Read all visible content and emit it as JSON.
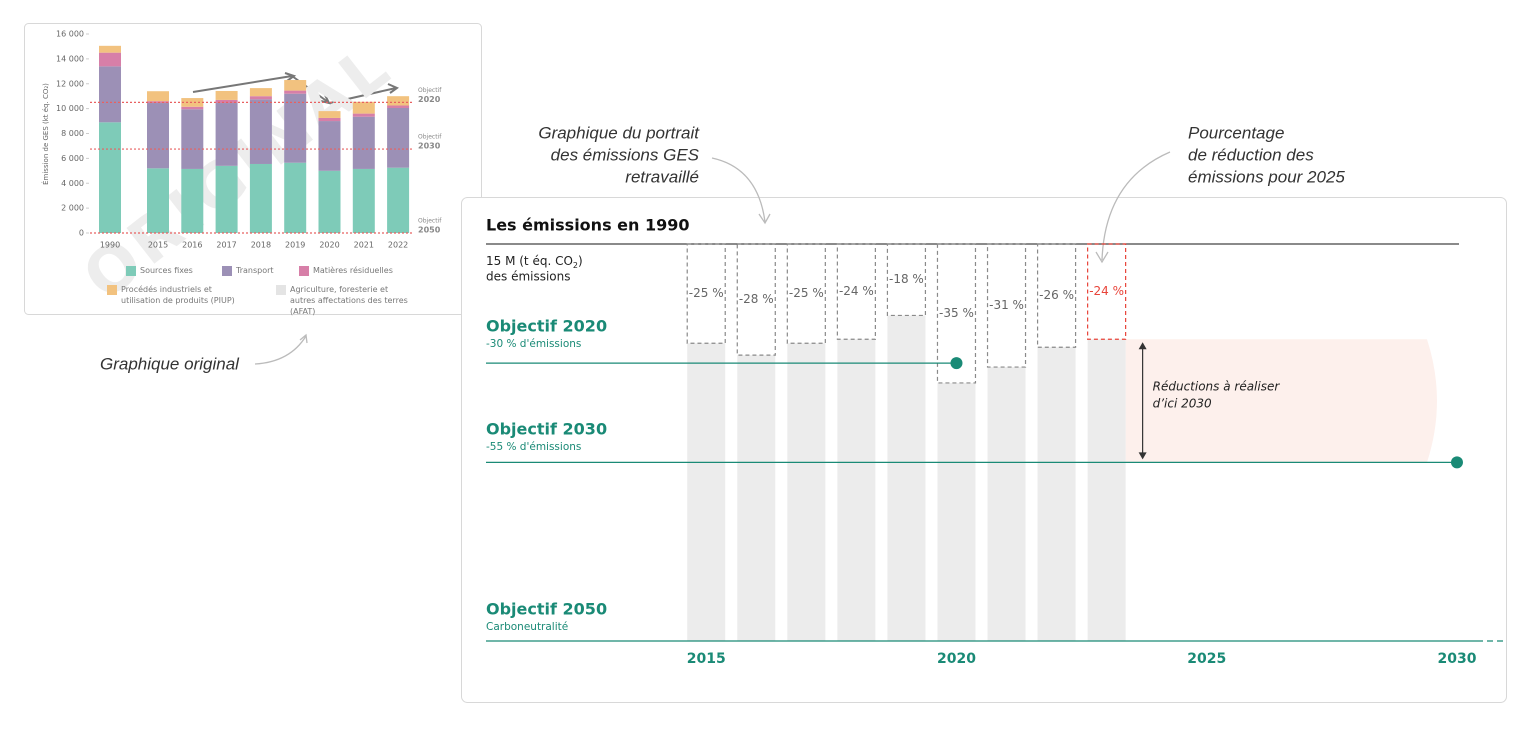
{
  "chart_data": [
    {
      "type": "stacked_bar",
      "ylabel": "Émission de GES (kt éq. CO₂)",
      "categories": [
        "1990",
        "2015",
        "2016",
        "2017",
        "2018",
        "2019",
        "2020",
        "2021",
        "2022"
      ],
      "series": [
        {
          "name": "Sources fixes",
          "color": "#7ecbb8",
          "values": [
            8900,
            5200,
            5150,
            5400,
            5550,
            5650,
            5000,
            5150,
            5250
          ]
        },
        {
          "name": "Transport",
          "color": "#9c90b6",
          "values": [
            4500,
            5250,
            4800,
            5050,
            5200,
            5550,
            4000,
            4200,
            4800
          ]
        },
        {
          "name": "Matières résiduelles",
          "color": "#d77fa8",
          "values": [
            1100,
            150,
            200,
            250,
            250,
            250,
            250,
            250,
            200
          ]
        },
        {
          "name": "Procédés industriels et utilisation de produits (PIUP)",
          "color": "#f2c27f",
          "values": [
            550,
            800,
            700,
            720,
            650,
            850,
            550,
            950,
            750
          ]
        },
        {
          "name": "Agriculture, foresterie et autres affectations des terres (AFAT)",
          "color": "#e4e4e4",
          "values": [
            0,
            0,
            0,
            0,
            0,
            0,
            0,
            0,
            0
          ]
        }
      ],
      "ylim": [
        0,
        16000
      ],
      "yticks": [
        0,
        {
          "value": 2000,
          "label": "2 000"
        },
        {
          "value": 4000,
          "label": "4 000"
        },
        {
          "value": 6000,
          "label": "6 000"
        },
        {
          "value": 8000,
          "label": "8 000"
        },
        {
          "value": 10000,
          "label": "10 000"
        },
        {
          "value": 12000,
          "label": "12 000"
        },
        {
          "value": 14000,
          "label": "14 000"
        },
        {
          "value": 16000,
          "label": "16 000"
        }
      ],
      "reference_lines": [
        {
          "label": "Objectif",
          "year_label": "2020",
          "value": 10500,
          "color": "#e86060"
        },
        {
          "label": "Objectif",
          "year_label": "2030",
          "value": 6750,
          "color": "#e86060"
        },
        {
          "label": "Objectif",
          "year_label": "2050",
          "value": 0,
          "color": "#e86060"
        }
      ],
      "watermark": "ORIGINAL",
      "caption": "Graphique original"
    },
    {
      "type": "reduction_bar",
      "title": "Les émissions en 1990",
      "baseline_note": {
        "text": "15 M (t éq. CO",
        "subscript": "2",
        "text_end": ")",
        "line2": "des émissions"
      },
      "x": [
        2015,
        2016,
        2017,
        2018,
        2019,
        2020,
        2021,
        2022,
        2023
      ],
      "values": [
        -25,
        -28,
        -25,
        -24,
        -18,
        -35,
        -31,
        -26,
        -24
      ],
      "value_labels": [
        "-25 %",
        "-28 %",
        "-25 %",
        "-24 %",
        "-18 %",
        "-35 %",
        "-31 %",
        "-26 %",
        "-24 %"
      ],
      "bar_color": "#ececec",
      "box_colors": [
        "#8a8a8a",
        "#8a8a8a",
        "#8a8a8a",
        "#8a8a8a",
        "#8a8a8a",
        "#8a8a8a",
        "#8a8a8a",
        "#8a8a8a",
        "#e8443a"
      ],
      "xlim": [
        2010.6,
        2030.4
      ],
      "xticks": [
        2015,
        2020,
        2025,
        2030
      ],
      "ylim": [
        -100,
        0
      ],
      "target_color": "#1a8a76",
      "targets": [
        {
          "label": "Objectif 2020",
          "sublabel": "-30 % d'émissions",
          "value": -30,
          "year": 2020
        },
        {
          "label": "Objectif 2030",
          "sublabel": "-55 % d'émissions",
          "value": -55,
          "year": 2030
        },
        {
          "label": "Objectif 2050",
          "sublabel": "Carboneutralité",
          "value": -100
        }
      ],
      "gap_label": [
        "Réductions à réaliser",
        "d’ici 2030"
      ],
      "annotations": [
        {
          "lines": [
            "Graphique du portrait",
            "des émissions GES",
            "retravaillé"
          ]
        },
        {
          "lines": [
            "Pourcentage",
            "de réduction des",
            "émissions pour 2025"
          ]
        }
      ]
    }
  ]
}
